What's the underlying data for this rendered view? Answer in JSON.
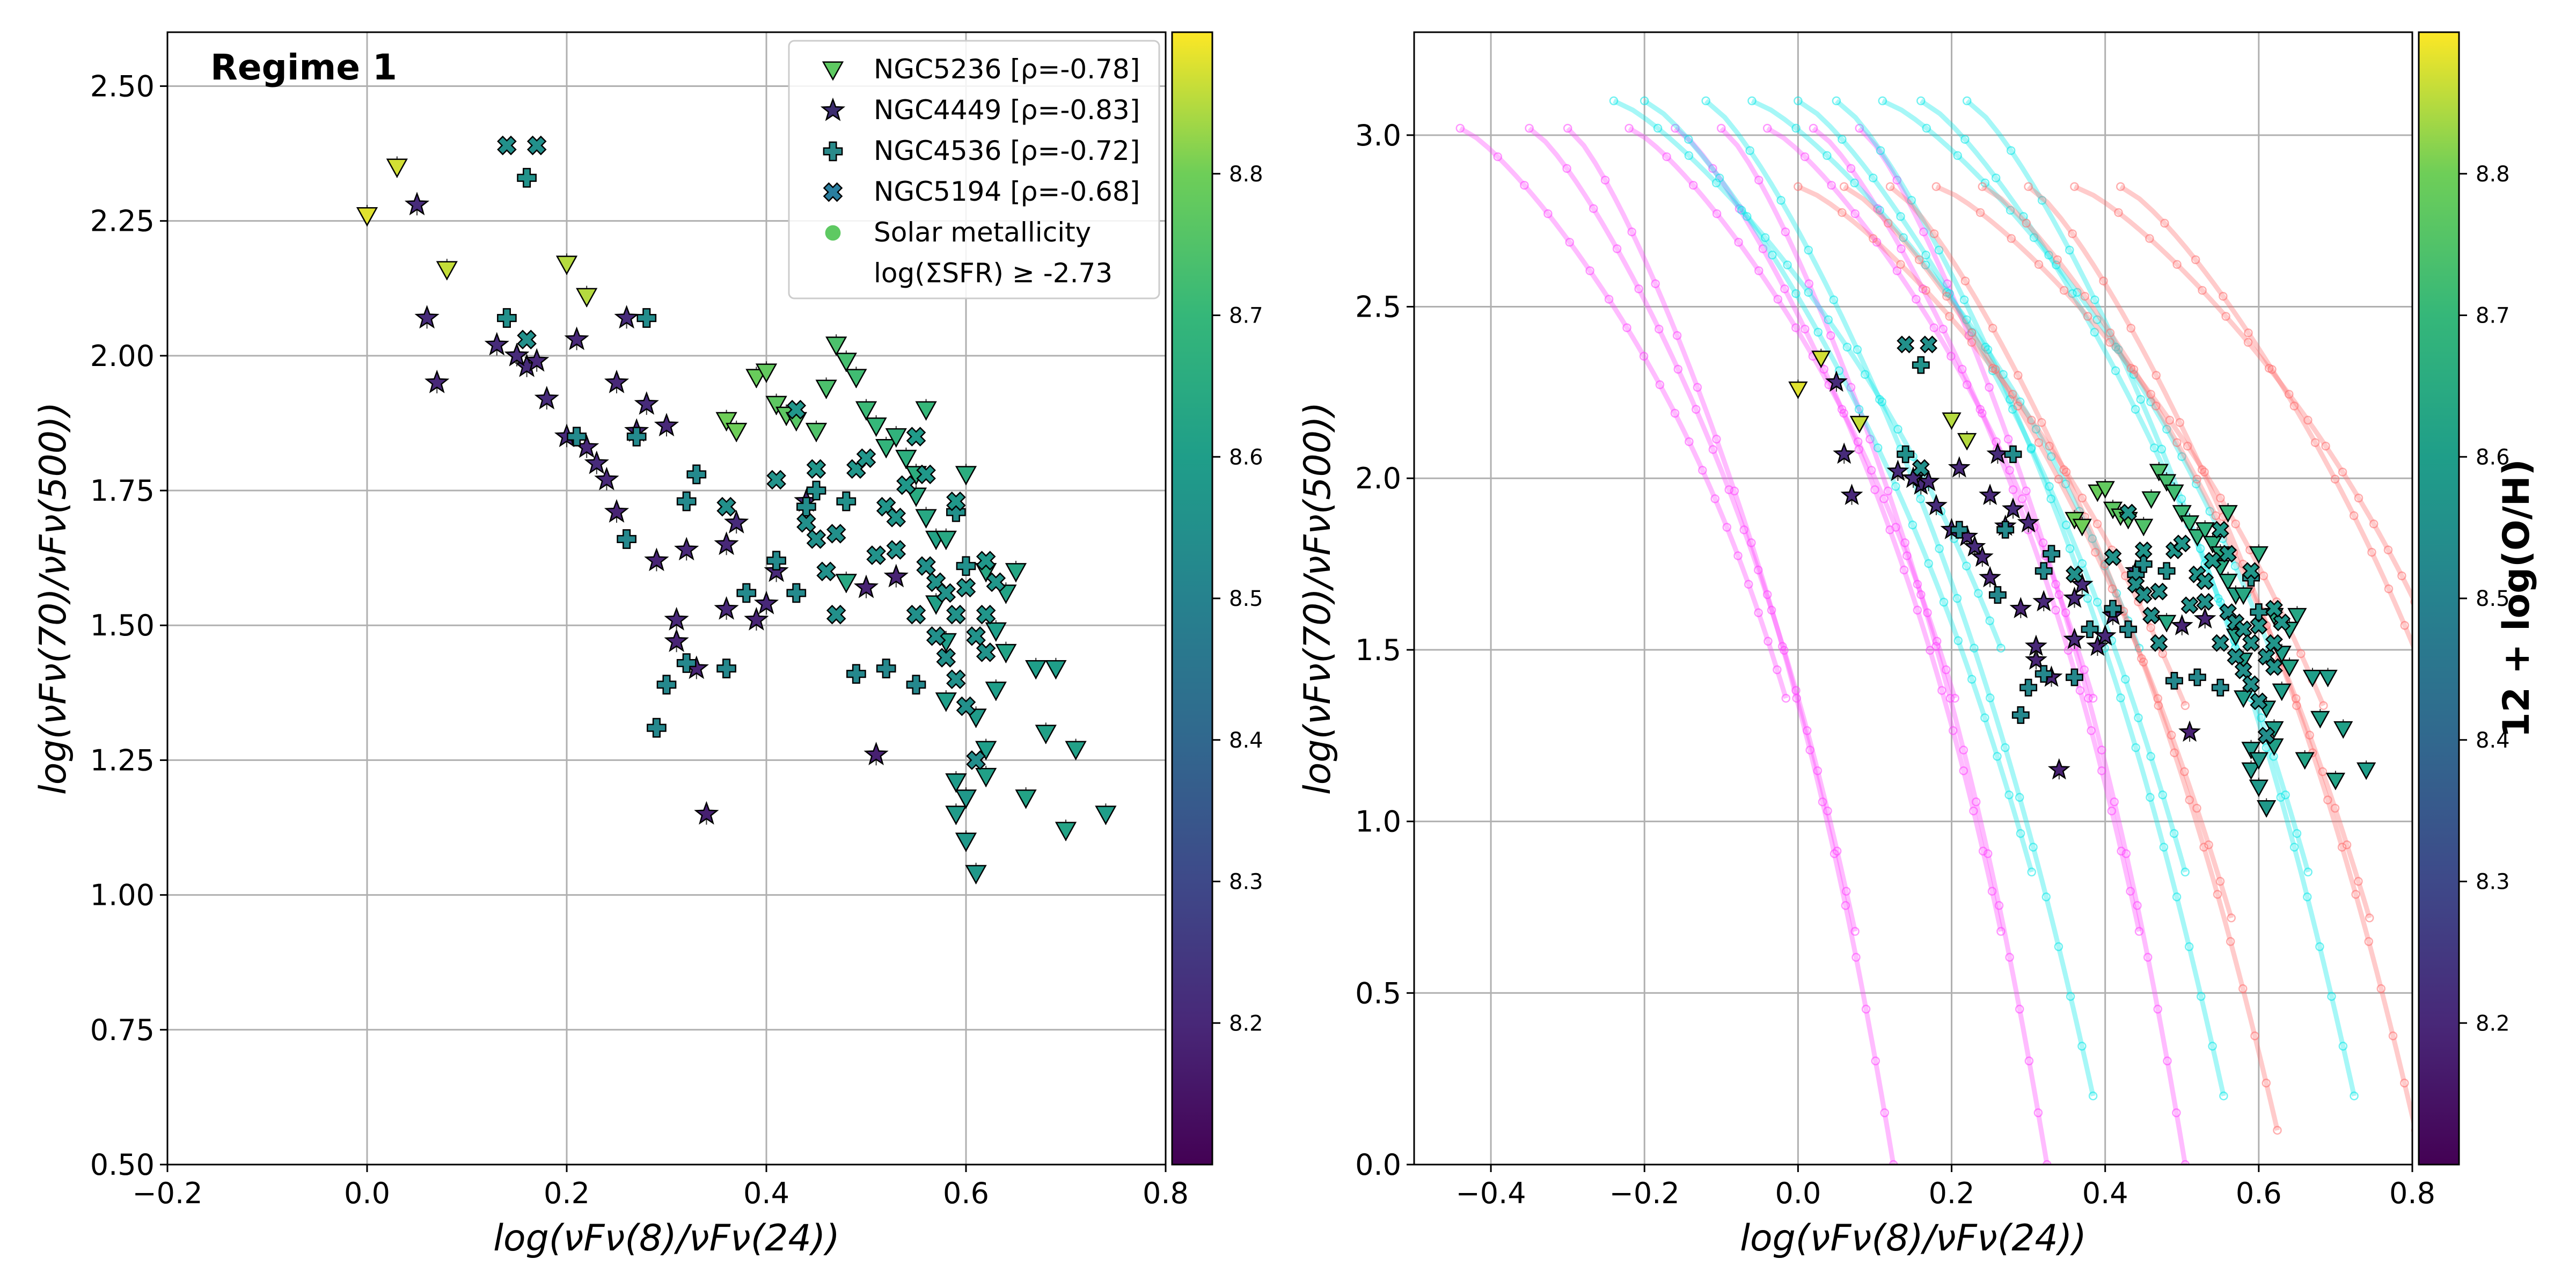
{
  "chart_data": [
    {
      "type": "scatter",
      "title": "Regime 1",
      "xlabel": "log(νFν(8)/νFν(24))",
      "ylabel": "log(νFν(70)/νFν(500))",
      "xlim": [
        -0.2,
        0.8
      ],
      "ylim": [
        0.5,
        2.6
      ],
      "xticks": [
        "−0.2",
        "0.0",
        "0.2",
        "0.4",
        "0.6",
        "0.8"
      ],
      "xtick_values": [
        -0.2,
        0.0,
        0.2,
        0.4,
        0.6,
        0.8
      ],
      "yticks": [
        "0.50",
        "0.75",
        "1.00",
        "1.25",
        "1.50",
        "1.75",
        "2.00",
        "2.25",
        "2.50"
      ],
      "ytick_values": [
        0.5,
        0.75,
        1.0,
        1.25,
        1.5,
        1.75,
        2.0,
        2.25,
        2.5
      ],
      "grid": true,
      "legend_position": "top-right",
      "legend": [
        {
          "label": "NGC5236 [ρ=-0.78]",
          "marker": "triangle-down",
          "color": "#5ec962"
        },
        {
          "label": "NGC4449 [ρ=-0.83]",
          "marker": "star",
          "color": "#3b2c6e"
        },
        {
          "label": "NGC4536 [ρ=-0.72]",
          "marker": "plus",
          "color": "#2a8a8a"
        },
        {
          "label": "NGC5194 [ρ=-0.68]",
          "marker": "x",
          "color": "#2a7fa0"
        },
        {
          "label": "Solar metallicity",
          "marker": "circle",
          "color": "#5ec962"
        },
        {
          "label": "log(ΣSFR) ≥ -2.73",
          "marker": "none",
          "color": ""
        }
      ],
      "series": [
        {
          "name": "NGC5236",
          "marker": "triangle-down",
          "points": [
            [
              0.0,
              2.26,
              8.88
            ],
            [
              0.03,
              2.35,
              8.87
            ],
            [
              0.08,
              2.16,
              8.86
            ],
            [
              0.2,
              2.17,
              8.85
            ],
            [
              0.22,
              2.11,
              8.85
            ],
            [
              0.36,
              1.88,
              8.8
            ],
            [
              0.37,
              1.86,
              8.8
            ],
            [
              0.39,
              1.96,
              8.79
            ],
            [
              0.4,
              1.97,
              8.78
            ],
            [
              0.41,
              1.91,
              8.77
            ],
            [
              0.42,
              1.89,
              8.77
            ],
            [
              0.43,
              1.88,
              8.76
            ],
            [
              0.45,
              1.86,
              8.75
            ],
            [
              0.46,
              1.94,
              8.74
            ],
            [
              0.47,
              2.02,
              8.74
            ],
            [
              0.48,
              1.99,
              8.73
            ],
            [
              0.49,
              1.96,
              8.72
            ],
            [
              0.5,
              1.9,
              8.71
            ],
            [
              0.51,
              1.87,
              8.7
            ],
            [
              0.52,
              1.83,
              8.69
            ],
            [
              0.53,
              1.85,
              8.68
            ],
            [
              0.54,
              1.81,
              8.67
            ],
            [
              0.55,
              1.78,
              8.66
            ],
            [
              0.55,
              1.74,
              8.65
            ],
            [
              0.56,
              1.7,
              8.64
            ],
            [
              0.57,
              1.66,
              8.62
            ],
            [
              0.57,
              1.54,
              8.61
            ],
            [
              0.58,
              1.47,
              8.6
            ],
            [
              0.58,
              1.36,
              8.6
            ],
            [
              0.59,
              1.21,
              8.59
            ],
            [
              0.59,
              1.15,
              8.59
            ],
            [
              0.6,
              1.1,
              8.58
            ],
            [
              0.6,
              1.18,
              8.58
            ],
            [
              0.61,
              1.04,
              8.58
            ],
            [
              0.61,
              1.33,
              8.59
            ],
            [
              0.62,
              1.27,
              8.6
            ],
            [
              0.62,
              1.22,
              8.61
            ],
            [
              0.63,
              1.38,
              8.6
            ],
            [
              0.64,
              1.45,
              8.62
            ],
            [
              0.65,
              1.6,
              8.63
            ],
            [
              0.66,
              1.18,
              8.62
            ],
            [
              0.67,
              1.42,
              8.6
            ],
            [
              0.68,
              1.3,
              8.61
            ],
            [
              0.69,
              1.42,
              8.6
            ],
            [
              0.7,
              1.12,
              8.62
            ],
            [
              0.71,
              1.27,
              8.61
            ],
            [
              0.74,
              1.15,
              8.6
            ],
            [
              0.48,
              1.58,
              8.64
            ],
            [
              0.56,
              1.9,
              8.7
            ],
            [
              0.6,
              1.78,
              8.66
            ],
            [
              0.62,
              1.6,
              8.64
            ],
            [
              0.64,
              1.56,
              8.62
            ],
            [
              0.58,
              1.66,
              8.64
            ],
            [
              0.63,
              1.49,
              8.6
            ]
          ]
        },
        {
          "name": "NGC4449",
          "marker": "star",
          "points": [
            [
              0.05,
              2.28,
              8.21
            ],
            [
              0.06,
              2.07,
              8.21
            ],
            [
              0.07,
              1.95,
              8.2
            ],
            [
              0.13,
              2.02,
              8.21
            ],
            [
              0.15,
              2.0,
              8.2
            ],
            [
              0.16,
              1.98,
              8.21
            ],
            [
              0.17,
              1.99,
              8.2
            ],
            [
              0.18,
              1.92,
              8.21
            ],
            [
              0.2,
              1.85,
              8.21
            ],
            [
              0.21,
              2.03,
              8.2
            ],
            [
              0.22,
              1.83,
              8.2
            ],
            [
              0.23,
              1.8,
              8.21
            ],
            [
              0.24,
              1.77,
              8.2
            ],
            [
              0.25,
              1.71,
              8.19
            ],
            [
              0.25,
              1.95,
              8.2
            ],
            [
              0.26,
              2.07,
              8.21
            ],
            [
              0.27,
              1.86,
              8.2
            ],
            [
              0.28,
              1.91,
              8.21
            ],
            [
              0.29,
              1.62,
              8.19
            ],
            [
              0.3,
              1.87,
              8.2
            ],
            [
              0.31,
              1.47,
              8.19
            ],
            [
              0.32,
              1.64,
              8.2
            ],
            [
              0.33,
              1.42,
              8.19
            ],
            [
              0.34,
              1.15,
              8.18
            ],
            [
              0.36,
              1.53,
              8.2
            ],
            [
              0.36,
              1.65,
              8.2
            ],
            [
              0.37,
              1.69,
              8.21
            ],
            [
              0.39,
              1.51,
              8.19
            ],
            [
              0.41,
              1.6,
              8.2
            ],
            [
              0.44,
              1.73,
              8.2
            ],
            [
              0.5,
              1.57,
              8.19
            ],
            [
              0.51,
              1.26,
              8.18
            ],
            [
              0.53,
              1.59,
              8.19
            ],
            [
              0.15,
              2.0,
              8.21
            ],
            [
              0.31,
              1.51,
              8.2
            ],
            [
              0.4,
              1.54,
              8.2
            ]
          ]
        },
        {
          "name": "NGC4536",
          "marker": "plus",
          "points": [
            [
              0.14,
              2.07,
              8.55
            ],
            [
              0.16,
              2.33,
              8.56
            ],
            [
              0.21,
              1.85,
              8.53
            ],
            [
              0.26,
              1.66,
              8.52
            ],
            [
              0.27,
              1.85,
              8.53
            ],
            [
              0.28,
              2.07,
              8.54
            ],
            [
              0.3,
              1.39,
              8.52
            ],
            [
              0.32,
              1.73,
              8.53
            ],
            [
              0.33,
              1.78,
              8.53
            ],
            [
              0.29,
              1.31,
              8.52
            ],
            [
              0.32,
              1.43,
              8.52
            ],
            [
              0.36,
              1.42,
              8.52
            ],
            [
              0.38,
              1.56,
              8.53
            ],
            [
              0.41,
              1.62,
              8.53
            ],
            [
              0.43,
              1.56,
              8.53
            ],
            [
              0.44,
              1.72,
              8.54
            ],
            [
              0.45,
              1.75,
              8.54
            ],
            [
              0.48,
              1.73,
              8.55
            ],
            [
              0.49,
              1.41,
              8.52
            ],
            [
              0.52,
              1.42,
              8.52
            ],
            [
              0.55,
              1.39,
              8.52
            ],
            [
              0.59,
              1.71,
              8.55
            ],
            [
              0.6,
              1.61,
              8.55
            ]
          ]
        },
        {
          "name": "NGC5194",
          "marker": "x",
          "points": [
            [
              0.14,
              2.39,
              8.55
            ],
            [
              0.16,
              2.03,
              8.55
            ],
            [
              0.17,
              2.39,
              8.55
            ],
            [
              0.36,
              1.72,
              8.55
            ],
            [
              0.41,
              1.77,
              8.56
            ],
            [
              0.43,
              1.9,
              8.57
            ],
            [
              0.44,
              1.69,
              8.55
            ],
            [
              0.45,
              1.66,
              8.55
            ],
            [
              0.46,
              1.6,
              8.55
            ],
            [
              0.47,
              1.67,
              8.55
            ],
            [
              0.49,
              1.79,
              8.57
            ],
            [
              0.5,
              1.81,
              8.57
            ],
            [
              0.51,
              1.63,
              8.56
            ],
            [
              0.52,
              1.72,
              8.57
            ],
            [
              0.53,
              1.7,
              8.57
            ],
            [
              0.54,
              1.76,
              8.58
            ],
            [
              0.55,
              1.85,
              8.59
            ],
            [
              0.55,
              1.52,
              8.55
            ],
            [
              0.56,
              1.61,
              8.55
            ],
            [
              0.57,
              1.48,
              8.55
            ],
            [
              0.57,
              1.58,
              8.56
            ],
            [
              0.58,
              1.44,
              8.55
            ],
            [
              0.58,
              1.56,
              8.56
            ],
            [
              0.59,
              1.4,
              8.55
            ],
            [
              0.59,
              1.52,
              8.56
            ],
            [
              0.6,
              1.57,
              8.57
            ],
            [
              0.61,
              1.48,
              8.56
            ],
            [
              0.62,
              1.45,
              8.56
            ],
            [
              0.62,
              1.52,
              8.57
            ],
            [
              0.63,
              1.58,
              8.57
            ],
            [
              0.6,
              1.35,
              8.55
            ],
            [
              0.61,
              1.25,
              8.54
            ],
            [
              0.56,
              1.78,
              8.58
            ],
            [
              0.59,
              1.73,
              8.58
            ],
            [
              0.62,
              1.62,
              8.58
            ],
            [
              0.47,
              1.52,
              8.55
            ],
            [
              0.45,
              1.79,
              8.57
            ],
            [
              0.53,
              1.64,
              8.56
            ]
          ]
        }
      ],
      "colorbar": {
        "label": "",
        "range": [
          8.1,
          8.9
        ],
        "ticks": [
          "8.2",
          "8.3",
          "8.4",
          "8.5",
          "8.6",
          "8.7",
          "8.8"
        ],
        "tick_values": [
          8.2,
          8.3,
          8.4,
          8.5,
          8.6,
          8.7,
          8.8
        ]
      }
    },
    {
      "type": "scatter",
      "title": "",
      "xlabel": "log(νFν(8)/νFν(24))",
      "ylabel": "log(νFν(70)/νFν(500))",
      "xlim": [
        -0.5,
        0.8
      ],
      "ylim": [
        0.0,
        3.3
      ],
      "xticks": [
        "−0.4",
        "−0.2",
        "0.0",
        "0.2",
        "0.4",
        "0.6",
        "0.8"
      ],
      "xtick_values": [
        -0.4,
        -0.2,
        0.0,
        0.2,
        0.4,
        0.6,
        0.8
      ],
      "yticks": [
        "0.0",
        "0.5",
        "1.0",
        "1.5",
        "2.0",
        "2.5",
        "3.0"
      ],
      "ytick_values": [
        0.0,
        0.5,
        1.0,
        1.5,
        2.0,
        2.5,
        3.0
      ],
      "grid": true,
      "model_tracks": [
        {
          "name": "model-magenta",
          "color": "#ff40ff",
          "tops": [
            -0.44,
            -0.35,
            -0.3,
            -0.22,
            -0.16,
            -0.1,
            -0.04,
            0.02,
            0.08
          ],
          "top_y": 3.02,
          "slope_shift": 0.42,
          "bottom_y": 0.0
        },
        {
          "name": "model-cyan",
          "color": "#00e8e8",
          "tops": [
            -0.24,
            -0.2,
            -0.12,
            -0.06,
            0.0,
            0.05,
            0.11,
            0.16,
            0.22
          ],
          "top_y": 3.1,
          "slope_shift": 0.5,
          "bottom_y": 0.2
        },
        {
          "name": "model-red",
          "color": "#ff6b6b",
          "tops": [
            0.0,
            0.06,
            0.12,
            0.18,
            0.24,
            0.3,
            0.36,
            0.42
          ],
          "top_y": 2.85,
          "slope_shift": 0.5,
          "bottom_y": 0.1
        }
      ],
      "series_ref": "same observed points as the first panel",
      "colorbar": {
        "label": "12 + log(O/H)",
        "range": [
          8.1,
          8.9
        ],
        "ticks": [
          "8.2",
          "8.3",
          "8.4",
          "8.5",
          "8.6",
          "8.7",
          "8.8"
        ],
        "tick_values": [
          8.2,
          8.3,
          8.4,
          8.5,
          8.6,
          8.7,
          8.8
        ]
      }
    }
  ]
}
